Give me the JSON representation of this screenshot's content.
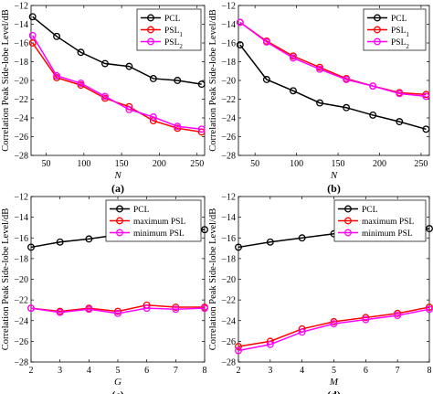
{
  "figure": {
    "ylabel": "Correlation Peak Side-lobe Level/dB"
  },
  "colors": {
    "PCL": "#000000",
    "PSL1": "#ff0000",
    "PSL2": "#ff00ff"
  },
  "chart_data": [
    {
      "type": "line",
      "panel_label": "(a)",
      "xlabel": "N",
      "ylabel": "Correlation Peak Side-lobe Level/dB",
      "xlim": [
        30,
        260
      ],
      "ylim": [
        -28,
        -12
      ],
      "xticks": [
        50,
        100,
        150,
        200,
        250
      ],
      "yticks": [
        -28,
        -26,
        -24,
        -22,
        -20,
        -18,
        -16,
        -14,
        -12
      ],
      "grid": false,
      "legend_position": "top-right",
      "x": [
        32,
        64,
        96,
        128,
        160,
        192,
        224,
        256
      ],
      "series": [
        {
          "name": "PCL",
          "key": "PCL",
          "values": [
            -13.2,
            -15.3,
            -17.0,
            -18.2,
            -18.5,
            -19.8,
            -20.0,
            -20.4
          ]
        },
        {
          "name": "PSL",
          "sub": "1",
          "key": "PSL1",
          "values": [
            -16.0,
            -19.7,
            -20.5,
            -21.9,
            -22.8,
            -24.3,
            -25.1,
            -25.5
          ]
        },
        {
          "name": "PSL",
          "sub": "2",
          "key": "PSL2",
          "values": [
            -15.2,
            -19.5,
            -20.3,
            -21.7,
            -23.1,
            -23.9,
            -24.9,
            -25.2
          ]
        }
      ]
    },
    {
      "type": "line",
      "panel_label": "(b)",
      "xlabel": "N",
      "ylabel": "Correlation Peak Side-lobe Level/dB",
      "xlim": [
        30,
        260
      ],
      "ylim": [
        -28,
        -12
      ],
      "xticks": [
        50,
        100,
        150,
        200,
        250
      ],
      "yticks": [
        -28,
        -26,
        -24,
        -22,
        -20,
        -18,
        -16,
        -14,
        -12
      ],
      "grid": false,
      "legend_position": "top-right",
      "x": [
        32,
        64,
        96,
        128,
        160,
        192,
        224,
        256
      ],
      "series": [
        {
          "name": "PCL",
          "key": "PCL",
          "values": [
            -16.2,
            -19.9,
            -21.1,
            -22.4,
            -22.9,
            -23.7,
            -24.4,
            -25.2
          ]
        },
        {
          "name": "PSL",
          "sub": "1",
          "key": "PSL1",
          "values": [
            -13.8,
            -15.8,
            -17.4,
            -18.6,
            -19.8,
            -20.6,
            -21.3,
            -21.5
          ]
        },
        {
          "name": "PSL",
          "sub": "2",
          "key": "PSL2",
          "values": [
            -13.8,
            -15.9,
            -17.6,
            -18.8,
            -19.9,
            -20.6,
            -21.4,
            -21.7
          ]
        }
      ]
    },
    {
      "type": "line",
      "panel_label": "(c)",
      "xlabel": "G",
      "ylabel": "Correlation Peak Side-lobe Level/dB",
      "xlim": [
        2,
        8
      ],
      "ylim": [
        -28,
        -12
      ],
      "xticks": [
        2,
        3,
        4,
        5,
        6,
        7,
        8
      ],
      "yticks": [
        -28,
        -26,
        -24,
        -22,
        -20,
        -18,
        -16,
        -14,
        -12
      ],
      "grid": false,
      "legend_position": "top-right",
      "x": [
        2,
        3,
        4,
        5,
        6,
        7,
        8
      ],
      "series": [
        {
          "name": "PCL",
          "key": "PCL",
          "values": [
            -16.9,
            -16.4,
            -16.1,
            -15.7,
            -15.5,
            -15.2,
            -15.2
          ]
        },
        {
          "name": "maximum PSL",
          "key": "PSL1",
          "values": [
            -22.8,
            -23.1,
            -22.8,
            -23.1,
            -22.5,
            -22.7,
            -22.7
          ]
        },
        {
          "name": "minimum PSL",
          "key": "PSL2",
          "values": [
            -22.8,
            -23.2,
            -22.9,
            -23.3,
            -22.8,
            -22.9,
            -22.8
          ]
        }
      ]
    },
    {
      "type": "line",
      "panel_label": "(d)",
      "xlabel": "M",
      "ylabel": "Correlation Peak Side-lobe Level/dB",
      "xlim": [
        2,
        8
      ],
      "ylim": [
        -28,
        -12
      ],
      "xticks": [
        2,
        3,
        4,
        5,
        6,
        7,
        8
      ],
      "yticks": [
        -28,
        -26,
        -24,
        -22,
        -20,
        -18,
        -16,
        -14,
        -12
      ],
      "grid": false,
      "legend_position": "top-left",
      "x": [
        2,
        3,
        4,
        5,
        6,
        7,
        8
      ],
      "series": [
        {
          "name": "PCL",
          "key": "PCL",
          "values": [
            -16.9,
            -16.4,
            -16.0,
            -15.6,
            -15.5,
            -15.5,
            -15.1
          ]
        },
        {
          "name": "maximum PSL",
          "key": "PSL1",
          "values": [
            -26.5,
            -26.0,
            -24.8,
            -24.1,
            -23.7,
            -23.3,
            -22.7
          ]
        },
        {
          "name": "minimum PSL",
          "key": "PSL2",
          "values": [
            -26.9,
            -26.3,
            -25.1,
            -24.3,
            -23.9,
            -23.5,
            -22.9
          ]
        }
      ]
    }
  ]
}
